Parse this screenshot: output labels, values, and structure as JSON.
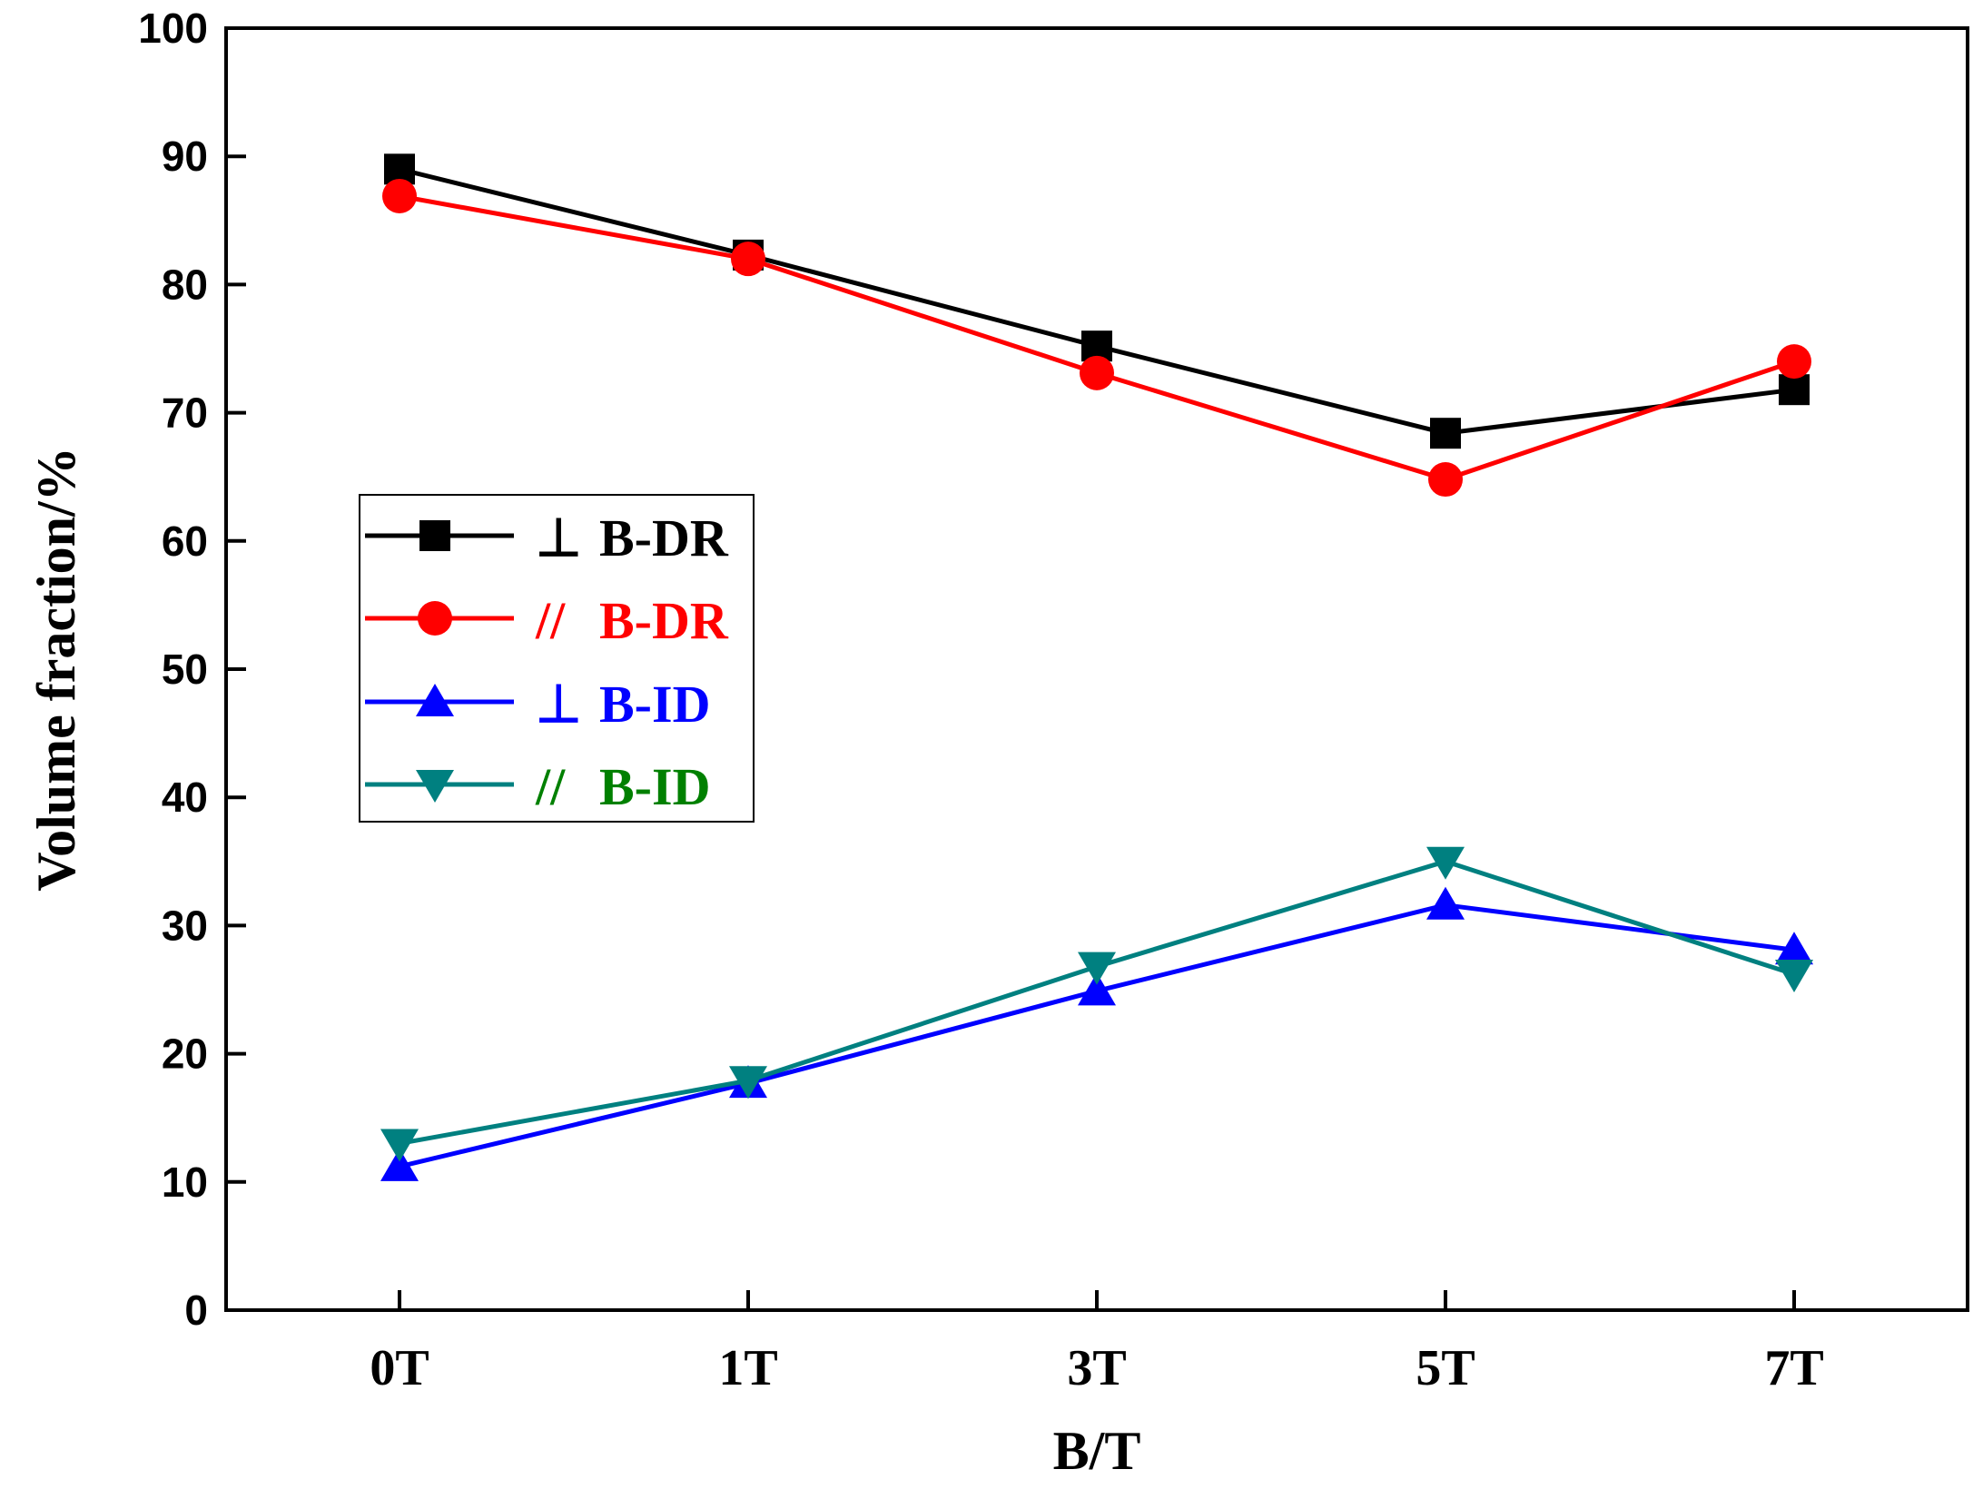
{
  "chart_data": {
    "type": "line",
    "title": "",
    "xlabel": "B/T",
    "ylabel": "Volume fraction/%",
    "categories": [
      "0T",
      "1T",
      "3T",
      "5T",
      "7T"
    ],
    "ylim": [
      0,
      100
    ],
    "yticks": [
      0,
      10,
      20,
      30,
      40,
      50,
      60,
      70,
      80,
      90,
      100
    ],
    "legend_position": "center-left",
    "series": [
      {
        "name": "⊥B-DR",
        "symbol": "⊥",
        "label": "B-DR",
        "marker": "square",
        "color": "#000000",
        "text_color": "#000000",
        "values": [
          89,
          82.3,
          75.2,
          68.4,
          71.8
        ]
      },
      {
        "name": "//B-DR",
        "symbol": "//",
        "label": "B-DR",
        "marker": "circle",
        "color": "#ff0000",
        "text_color": "#ff0000",
        "values": [
          86.9,
          82,
          73.1,
          64.8,
          74
        ]
      },
      {
        "name": "⊥B-ID",
        "symbol": "⊥",
        "label": "B-ID",
        "marker": "triangle-up",
        "color": "#0000ff",
        "text_color": "#0000ff",
        "values": [
          11.2,
          17.7,
          24.9,
          31.6,
          28.1
        ]
      },
      {
        "name": "//B-ID",
        "symbol": "//",
        "label": "B-ID",
        "marker": "triangle-down",
        "color": "#008080",
        "text_color": "#008000",
        "values": [
          13,
          17.9,
          26.8,
          35,
          26.2
        ]
      }
    ]
  }
}
